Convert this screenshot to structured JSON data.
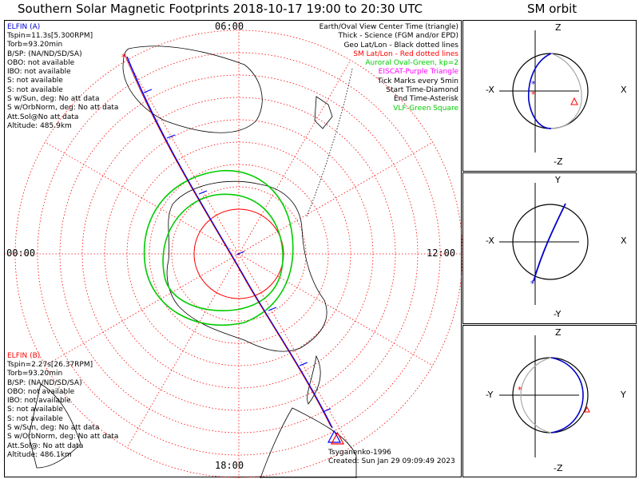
{
  "title": "Southern Solar Magnetic Footprints 2018-10-17 19:00 to 20:30 UTC",
  "sm_title": "SM orbit",
  "time_labels": {
    "top": "06:00",
    "left": "00:00",
    "right": "12:00",
    "bottom": "18:00"
  },
  "elfin_a": {
    "header": "ELFIN (A)",
    "lines": [
      "Tspin=11.3s[5.300RPM]",
      "Torb=93.20min",
      "B/SP: (NA/ND/SD/SA)",
      "OBO: not available",
      "IBO: not available",
      "S: not available",
      "S: not available",
      "S w/Sun, deg: No att data",
      "S w/OrbNorm, deg: No att data",
      "Att.Sol@No att data",
      "Altitude: 485.9km"
    ]
  },
  "elfin_b": {
    "header": "ELFIN (B)",
    "lines": [
      "Tspin=2.27s[26.37RPM]",
      "Torb=93.20min",
      "B/SP: (NA/ND/SD/SA)",
      "OBO: not available",
      "IBO: not available",
      "S: not available",
      "S: not available",
      "S w/Sun, deg: No att data",
      "S w/OrbNorm, deg: No att data",
      "Att.Sol@: No att data",
      "Altitude: 486.1km"
    ]
  },
  "legend": [
    {
      "text": "Earth/Oval View Center Time (triangle)",
      "color": "#000000"
    },
    {
      "text": "Thick - Science (FGM and/or EPD)",
      "color": "#000000"
    },
    {
      "text": "Geo Lat/Lon - Black dotted lines",
      "color": "#000000"
    },
    {
      "text": "SM Lat/Lon - Red dotted lines",
      "color": "#ff0000"
    },
    {
      "text": "Auroral Oval-Green, kp=2",
      "color": "#00cc00"
    },
    {
      "text": "EISCAT-Purple Triangle",
      "color": "#ff00ff"
    },
    {
      "text": "Tick Marks every 5min",
      "color": "#000000"
    },
    {
      "text": "Start Time-Diamond",
      "color": "#000000"
    },
    {
      "text": "End Time-Asterisk",
      "color": "#000000"
    },
    {
      "text": "VLF-Green Square",
      "color": "#00cc00"
    }
  ],
  "credits": {
    "author": "Tsyganenko-1996",
    "created": "Created: Sun Jan 29 09:09:49 2023"
  },
  "orbit_panels": [
    {
      "top": "Z",
      "bottom": "-Z",
      "left": "-X",
      "right": "X"
    },
    {
      "top": "Y",
      "bottom": "-Y",
      "left": "-X",
      "right": "X"
    },
    {
      "top": "Z",
      "bottom": "-Z",
      "left": "-Y",
      "right": "Y"
    }
  ],
  "colors": {
    "elfin_a": "#0000cc",
    "elfin_b": "#ff0000",
    "grid_red": "#ff0000",
    "oval": "#00cc00",
    "track": "#0000ff",
    "eiscat": "#ff00ff"
  }
}
